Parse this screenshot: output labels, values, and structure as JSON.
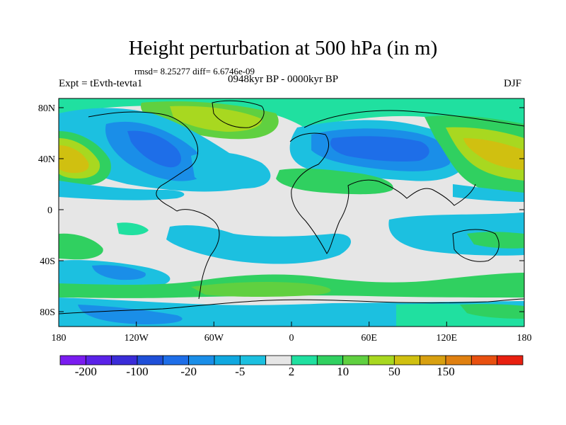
{
  "title": "Height perturbation at 500 hPa (in m)",
  "stats": "rmsd= 8.25277 diff= 6.6746e-09",
  "experiment": "Expt = tEvth-tevta1",
  "period": "0948kyr BP - 0000kyr BP",
  "season": "DJF",
  "axes": {
    "y_ticks": [
      "80N",
      "40N",
      "0",
      "40S",
      "80S"
    ],
    "x_ticks": [
      "180",
      "120W",
      "60W",
      "0",
      "60E",
      "120E",
      "180"
    ]
  },
  "colorbar": {
    "colors": [
      "#7a1cf0",
      "#5a22e8",
      "#3a2cd8",
      "#1f4fd8",
      "#1e6ee8",
      "#1a8ee8",
      "#10a8e0",
      "#1cc0e0",
      "#e6e6e6",
      "#20e0a0",
      "#30d060",
      "#60d040",
      "#a8d820",
      "#d0c010",
      "#d8a010",
      "#e08010",
      "#e85010",
      "#e82010"
    ],
    "labels": [
      "-200",
      "-100",
      "-20",
      "-5",
      "2",
      "10",
      "50",
      "150"
    ]
  }
}
